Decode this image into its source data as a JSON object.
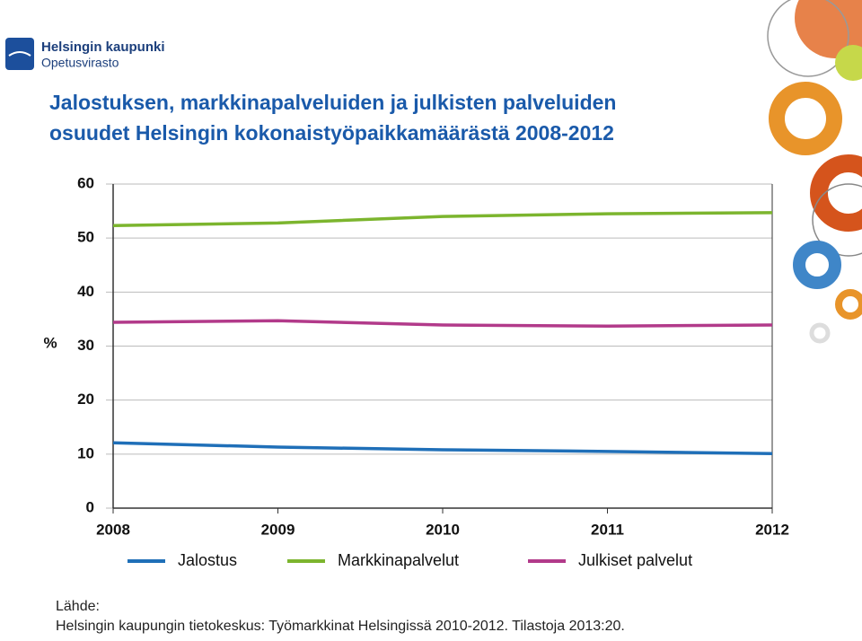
{
  "header": {
    "org": "Helsingin kaupunki",
    "unit": "Opetusvirasto"
  },
  "source": {
    "label": "Lähde:",
    "text": "Helsingin kaupungin tietokeskus: Työmarkkinat Helsingissä 2010-2012. Tilastoja 2013:20."
  },
  "chart_data": {
    "type": "line",
    "title": "Jalostuksen, markkinapalveluiden ja julkisten palveluiden",
    "subtitle": "osuudet Helsingin kokonaistyöpaikkamäärästä 2008-2012",
    "y_label": "%",
    "x": [
      2008,
      2009,
      2010,
      2011,
      2012
    ],
    "xlim": [
      2008,
      2012
    ],
    "xticks": [
      2008,
      2009,
      2010,
      2011,
      2012
    ],
    "ylim": [
      0,
      60
    ],
    "yticks": [
      0,
      10,
      20,
      30,
      40,
      50,
      60
    ],
    "grid": true,
    "legend": "bottom",
    "series": [
      {
        "name": "Jalostus",
        "color": "#1f6fb8",
        "values": [
          12.1,
          11.3,
          10.8,
          10.5,
          10.1
        ]
      },
      {
        "name": "Markkinapalvelut",
        "color": "#7cb52e",
        "values": [
          52.3,
          52.8,
          54.0,
          54.5,
          54.7
        ]
      },
      {
        "name": "Julkiset palvelut",
        "color": "#b23a8a",
        "values": [
          34.4,
          34.7,
          33.9,
          33.7,
          33.9
        ]
      }
    ]
  }
}
